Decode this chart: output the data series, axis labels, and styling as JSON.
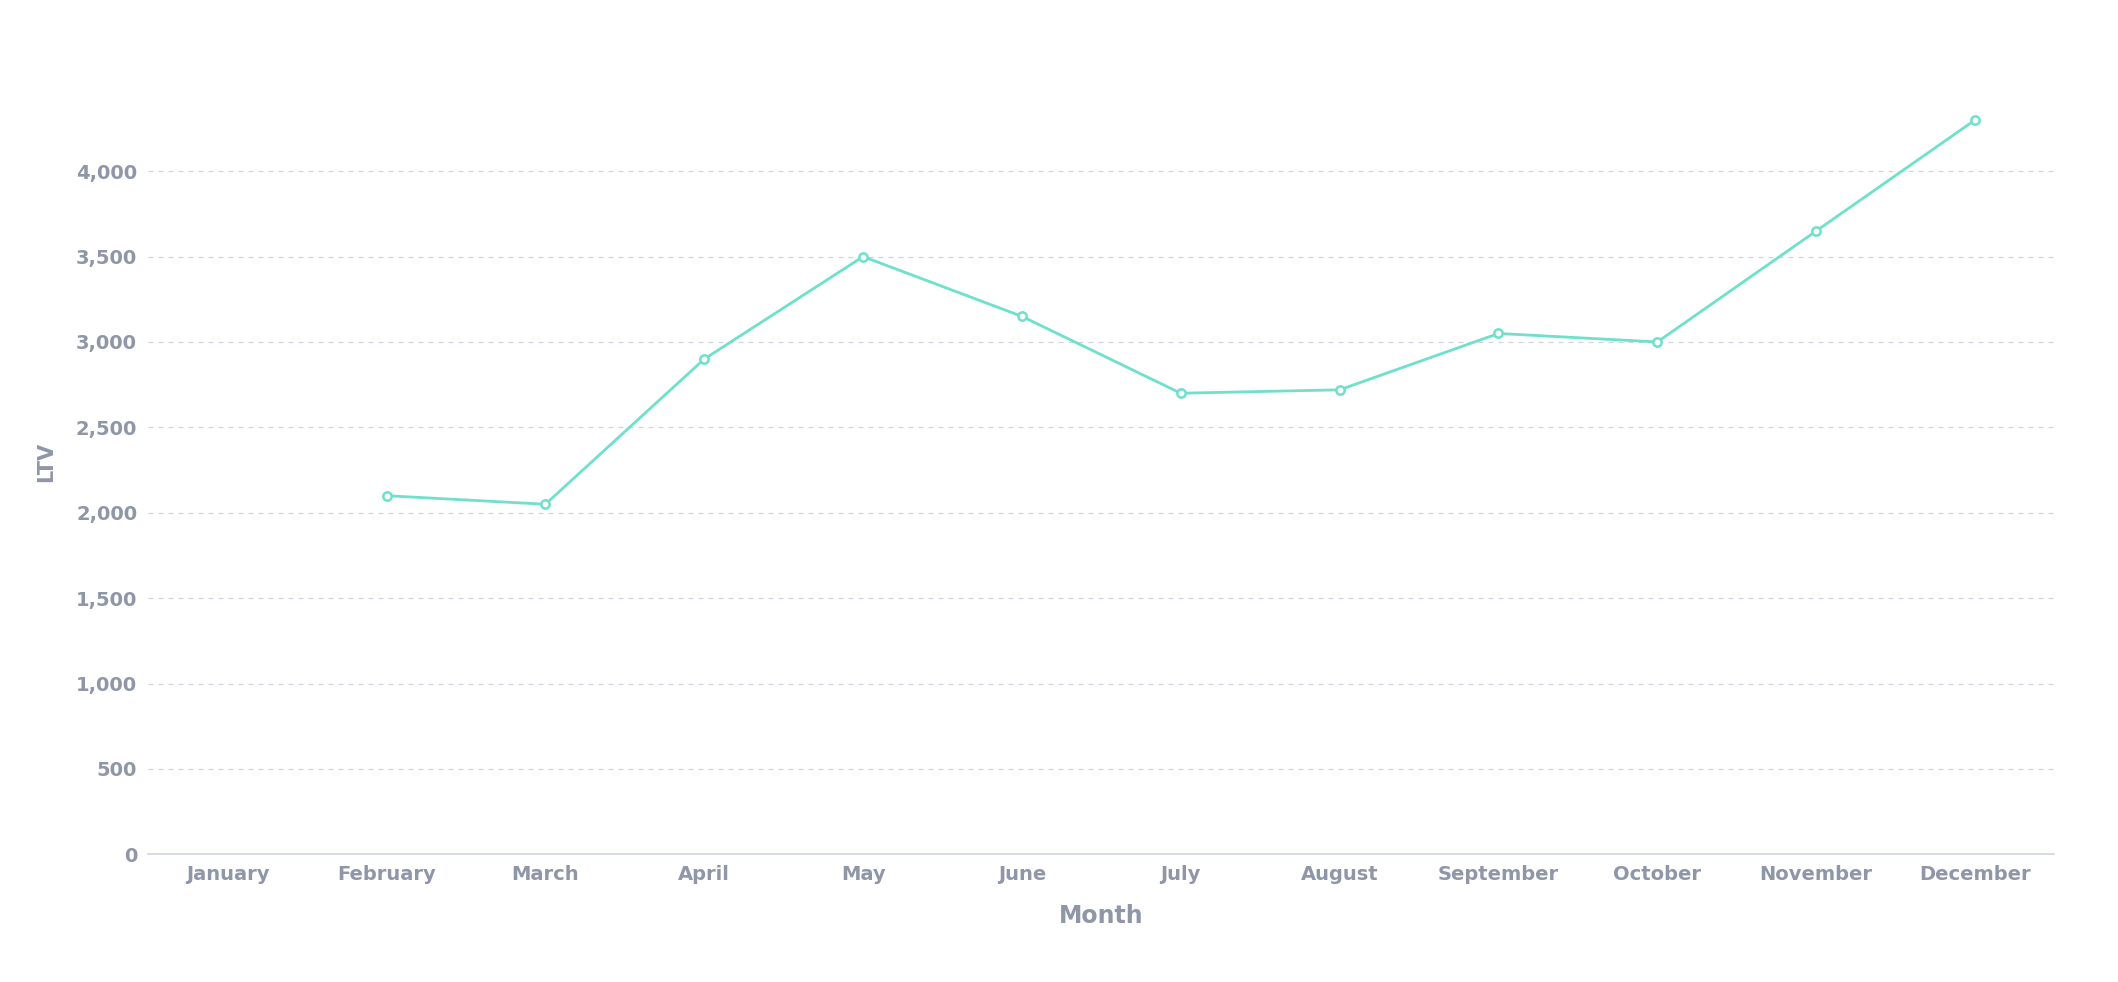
{
  "months": [
    "January",
    "February",
    "March",
    "April",
    "May",
    "June",
    "July",
    "August",
    "September",
    "October",
    "November",
    "December"
  ],
  "values": [
    null,
    2100,
    2050,
    2900,
    3500,
    3150,
    2700,
    2720,
    3050,
    3000,
    3650,
    4300
  ],
  "line_color": "#6ee0cc",
  "marker_color": "#ffffff",
  "marker_edge_color": "#6ee0cc",
  "background_color": "#ffffff",
  "grid_color": "#d0d4df",
  "tick_color": "#8f96a8",
  "xlabel": "Month",
  "ylabel": "LTV",
  "ylim": [
    0,
    4600
  ],
  "yticks": [
    0,
    500,
    1000,
    1500,
    2000,
    2500,
    3000,
    3500,
    4000
  ],
  "xlabel_fontsize": 17,
  "ylabel_fontsize": 15,
  "tick_fontsize": 14,
  "line_width": 2.0,
  "marker_size": 6
}
